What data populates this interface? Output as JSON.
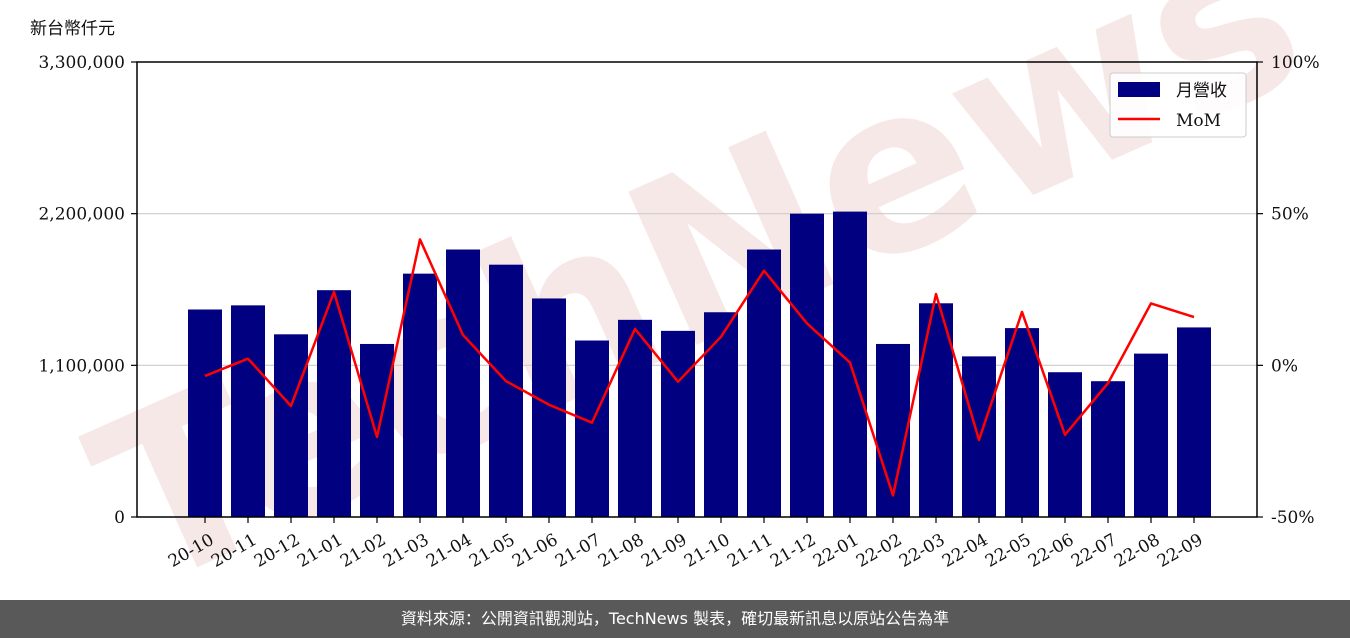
{
  "unit_label": "新台幣仟元",
  "footer_text": "資料來源：公開資訊觀測站，TechNews 製表，確切最新訊息以原站公告為準",
  "watermark_text": "TechNews",
  "colors": {
    "bar": "#000080",
    "line": "#ff0000",
    "grid": "#cccccc",
    "footer_bg": "#595959",
    "watermark": "#f2d6d6"
  },
  "chart_data": {
    "type": "bar",
    "categories": [
      "20-10",
      "20-11",
      "20-12",
      "21-01",
      "21-02",
      "21-03",
      "21-04",
      "21-05",
      "21-06",
      "21-07",
      "21-08",
      "21-09",
      "21-10",
      "21-11",
      "21-12",
      "22-01",
      "22-02",
      "22-03",
      "22-04",
      "22-05",
      "22-06",
      "22-07",
      "22-08",
      "22-09"
    ],
    "series": [
      {
        "name": "月營收",
        "type": "bar",
        "axis": "left",
        "values": [
          1505000,
          1535000,
          1325000,
          1645000,
          1255000,
          1765000,
          1940000,
          1830000,
          1585000,
          1280000,
          1430000,
          1350000,
          1485000,
          1940000,
          2200000,
          2215000,
          1255000,
          1550000,
          1165000,
          1370000,
          1050000,
          985000,
          1185000,
          1375000
        ]
      },
      {
        "name": "MoM",
        "type": "line",
        "axis": "right",
        "values": [
          -3.5,
          2.2,
          -13.4,
          24.2,
          -23.6,
          41.5,
          10.0,
          -5.2,
          -13.0,
          -18.9,
          12.0,
          -5.4,
          9.4,
          31.2,
          13.8,
          0.9,
          -42.9,
          23.5,
          -24.6,
          17.6,
          -22.9,
          -5.9,
          20.4,
          15.9
        ]
      }
    ],
    "y_left": {
      "lim": [
        0,
        3300000
      ],
      "ticks": [
        0,
        1100000,
        2200000,
        3300000
      ],
      "tick_labels": [
        "0",
        "1,100,000",
        "2,200,000",
        "3,300,000"
      ]
    },
    "y_right": {
      "lim": [
        -50,
        100
      ],
      "ticks": [
        -50,
        0,
        50,
        100
      ],
      "tick_labels": [
        "-50%",
        "0%",
        "50%",
        "100%"
      ]
    },
    "grid": "horizontal",
    "legend": "top-right"
  }
}
